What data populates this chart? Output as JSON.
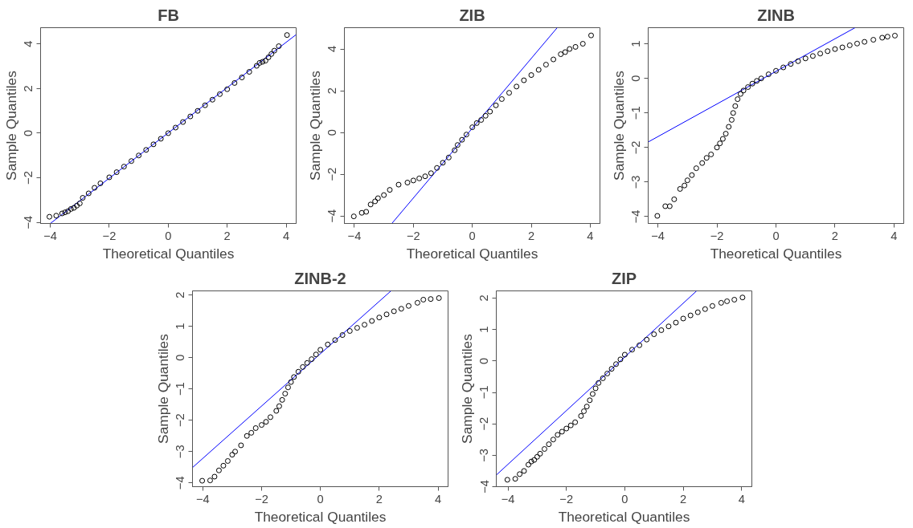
{
  "chart_data": [
    {
      "type": "scatter",
      "title": "FB",
      "xlabel": "Theoretical Quantiles",
      "ylabel": "Sample Quantiles",
      "xlim": [
        -4.33,
        4.34
      ],
      "ylim": [
        -4.05,
        4.73
      ],
      "xticks": [
        -4,
        -2,
        0,
        2,
        4
      ],
      "yticks": [
        -4,
        -2,
        0,
        2,
        4
      ],
      "series": [
        {
          "marker": "circle",
          "color": "#000000",
          "x": [
            -4.03,
            -3.8,
            -3.6,
            -3.5,
            -3.4,
            -3.3,
            -3.2,
            -3.1,
            -3.0,
            -2.9,
            -2.7,
            -2.5,
            -2.3,
            -2.0,
            -1.75,
            -1.5,
            -1.25,
            -1.0,
            -0.75,
            -0.5,
            -0.25,
            0,
            0.25,
            0.5,
            0.75,
            1.0,
            1.25,
            1.5,
            1.75,
            2.0,
            2.25,
            2.5,
            2.75,
            3.0,
            3.1,
            3.2,
            3.3,
            3.4,
            3.5,
            3.6,
            3.75,
            4.03
          ],
          "values": [
            -3.75,
            -3.7,
            -3.6,
            -3.55,
            -3.5,
            -3.4,
            -3.35,
            -3.25,
            -3.15,
            -2.9,
            -2.7,
            -2.45,
            -2.25,
            -1.98,
            -1.75,
            -1.5,
            -1.25,
            -1.0,
            -0.75,
            -0.5,
            -0.25,
            0,
            0.25,
            0.5,
            0.75,
            1.0,
            1.25,
            1.5,
            1.75,
            1.97,
            2.25,
            2.5,
            2.75,
            3.02,
            3.15,
            3.2,
            3.25,
            3.4,
            3.55,
            3.7,
            3.9,
            4.4
          ]
        },
        {
          "type": "line",
          "color": "#0000ff",
          "x": [
            -4.0,
            4.34
          ],
          "values": [
            -4.05,
            4.42
          ]
        }
      ]
    },
    {
      "type": "scatter",
      "title": "ZIB",
      "xlabel": "Theoretical Quantiles",
      "ylabel": "Sample Quantiles",
      "xlim": [
        -4.34,
        4.33
      ],
      "ylim": [
        -4.36,
        5.02
      ],
      "xticks": [
        -4,
        -2,
        0,
        2,
        4
      ],
      "yticks": [
        -4,
        -2,
        0,
        2,
        4
      ],
      "series": [
        {
          "marker": "circle",
          "color": "#000000",
          "x": [
            -4.02,
            -3.75,
            -3.6,
            -3.45,
            -3.3,
            -3.2,
            -3.0,
            -2.8,
            -2.5,
            -2.2,
            -2.0,
            -1.8,
            -1.6,
            -1.4,
            -1.2,
            -1.0,
            -0.8,
            -0.6,
            -0.5,
            -0.35,
            -0.2,
            0,
            0.15,
            0.3,
            0.45,
            0.6,
            0.8,
            1.0,
            1.25,
            1.5,
            1.75,
            2.0,
            2.25,
            2.5,
            2.75,
            3.0,
            3.15,
            3.3,
            3.5,
            3.75,
            4.03
          ],
          "values": [
            -4.02,
            -3.85,
            -3.8,
            -3.45,
            -3.3,
            -3.15,
            -3.0,
            -2.75,
            -2.5,
            -2.4,
            -2.3,
            -2.2,
            -2.1,
            -1.95,
            -1.7,
            -1.45,
            -1.2,
            -0.85,
            -0.6,
            -0.35,
            -0.1,
            0.25,
            0.45,
            0.6,
            0.8,
            1.0,
            1.3,
            1.6,
            1.9,
            2.2,
            2.5,
            2.75,
            3.0,
            3.25,
            3.5,
            3.75,
            3.85,
            4.0,
            4.1,
            4.25,
            4.65
          ]
        },
        {
          "type": "line",
          "color": "#0000ff",
          "x": [
            -2.73,
            2.88
          ],
          "values": [
            -4.36,
            5.02
          ]
        }
      ]
    },
    {
      "type": "scatter",
      "title": "ZINB",
      "xlabel": "Theoretical Quantiles",
      "ylabel": "Sample Quantiles",
      "xlim": [
        -4.33,
        4.33
      ],
      "ylim": [
        -4.2,
        1.47
      ],
      "xticks": [
        -4,
        -2,
        0,
        2,
        4
      ],
      "yticks": [
        -4,
        -3,
        -2,
        -1,
        0,
        1
      ],
      "series": [
        {
          "marker": "circle",
          "color": "#000000",
          "x": [
            -4.02,
            -3.75,
            -3.6,
            -3.45,
            -3.25,
            -3.1,
            -3.0,
            -2.85,
            -2.7,
            -2.5,
            -2.35,
            -2.2,
            -2.0,
            -1.9,
            -1.8,
            -1.7,
            -1.6,
            -1.5,
            -1.45,
            -1.38,
            -1.3,
            -1.2,
            -1.1,
            -0.95,
            -0.8,
            -0.65,
            -0.5,
            -0.25,
            0,
            0.25,
            0.5,
            0.75,
            1.0,
            1.25,
            1.5,
            1.75,
            2.0,
            2.25,
            2.5,
            2.75,
            3.0,
            3.3,
            3.6,
            3.78,
            4.03
          ],
          "values": [
            -3.98,
            -3.7,
            -3.7,
            -3.5,
            -3.2,
            -3.1,
            -2.95,
            -2.8,
            -2.6,
            -2.45,
            -2.3,
            -2.2,
            -2.0,
            -1.88,
            -1.75,
            -1.6,
            -1.4,
            -1.2,
            -1.0,
            -0.8,
            -0.6,
            -0.45,
            -0.35,
            -0.25,
            -0.15,
            -0.07,
            0.0,
            0.12,
            0.22,
            0.32,
            0.42,
            0.5,
            0.58,
            0.65,
            0.72,
            0.79,
            0.85,
            0.9,
            0.96,
            1.01,
            1.06,
            1.12,
            1.18,
            1.21,
            1.24
          ]
        },
        {
          "type": "line",
          "color": "#0000ff",
          "x": [
            -4.33,
            2.68
          ],
          "values": [
            -1.84,
            1.47
          ]
        }
      ]
    },
    {
      "type": "scatter",
      "title": "ZINB-2",
      "xlabel": "Theoretical Quantiles",
      "ylabel": "Sample Quantiles",
      "xlim": [
        -4.35,
        4.34
      ],
      "ylim": [
        -4.12,
        2.13
      ],
      "xticks": [
        -4,
        -2,
        0,
        2,
        4
      ],
      "yticks": [
        -4,
        -3,
        -2,
        -1,
        0,
        1,
        2
      ],
      "series": [
        {
          "marker": "circle",
          "color": "#000000",
          "x": [
            -4.02,
            -3.75,
            -3.6,
            -3.45,
            -3.3,
            -3.15,
            -3.0,
            -2.9,
            -2.7,
            -2.5,
            -2.35,
            -2.2,
            -2.0,
            -1.85,
            -1.7,
            -1.5,
            -1.4,
            -1.3,
            -1.2,
            -1.1,
            -1.0,
            -0.9,
            -0.75,
            -0.6,
            -0.45,
            -0.3,
            -0.15,
            0,
            0.25,
            0.5,
            0.75,
            1.0,
            1.25,
            1.5,
            1.75,
            2.0,
            2.25,
            2.5,
            2.75,
            3.0,
            3.3,
            3.5,
            3.75,
            4.03
          ],
          "values": [
            -3.93,
            -3.92,
            -3.8,
            -3.6,
            -3.45,
            -3.3,
            -3.1,
            -3.0,
            -2.8,
            -2.5,
            -2.4,
            -2.25,
            -2.15,
            -2.05,
            -1.9,
            -1.7,
            -1.55,
            -1.35,
            -1.15,
            -0.95,
            -0.78,
            -0.62,
            -0.45,
            -0.3,
            -0.17,
            -0.05,
            0.1,
            0.25,
            0.42,
            0.56,
            0.72,
            0.85,
            0.95,
            1.05,
            1.17,
            1.28,
            1.38,
            1.48,
            1.56,
            1.65,
            1.75,
            1.85,
            1.87,
            1.9
          ]
        },
        {
          "type": "line",
          "color": "#0000ff",
          "x": [
            -4.35,
            2.4
          ],
          "values": [
            -3.51,
            2.13
          ]
        }
      ]
    },
    {
      "type": "scatter",
      "title": "ZIP",
      "xlabel": "Theoretical Quantiles",
      "ylabel": "Sample Quantiles",
      "xlim": [
        -4.4,
        4.35
      ],
      "ylim": [
        -4.0,
        2.23
      ],
      "xticks": [
        -4,
        -2,
        0,
        2,
        4
      ],
      "yticks": [
        -4,
        -3,
        -2,
        -1,
        0,
        1,
        2
      ],
      "series": [
        {
          "marker": "circle",
          "color": "#000000",
          "x": [
            -4.02,
            -3.75,
            -3.6,
            -3.45,
            -3.3,
            -3.2,
            -3.1,
            -3.0,
            -2.9,
            -2.75,
            -2.6,
            -2.45,
            -2.3,
            -2.15,
            -2.0,
            -1.85,
            -1.7,
            -1.5,
            -1.4,
            -1.3,
            -1.2,
            -1.1,
            -1.0,
            -0.9,
            -0.75,
            -0.6,
            -0.45,
            -0.3,
            -0.15,
            0,
            0.25,
            0.5,
            0.75,
            1.0,
            1.25,
            1.5,
            1.75,
            2.0,
            2.25,
            2.5,
            2.75,
            3.0,
            3.3,
            3.5,
            3.75,
            4.03
          ],
          "values": [
            -3.78,
            -3.75,
            -3.6,
            -3.5,
            -3.3,
            -3.2,
            -3.15,
            -3.05,
            -2.95,
            -2.8,
            -2.65,
            -2.5,
            -2.35,
            -2.25,
            -2.15,
            -2.05,
            -1.95,
            -1.75,
            -1.6,
            -1.45,
            -1.25,
            -1.05,
            -0.87,
            -0.7,
            -0.55,
            -0.4,
            -0.25,
            -0.1,
            0.05,
            0.2,
            0.36,
            0.5,
            0.68,
            0.85,
            0.98,
            1.1,
            1.22,
            1.35,
            1.45,
            1.55,
            1.65,
            1.75,
            1.85,
            1.9,
            1.95,
            2.02
          ]
        },
        {
          "type": "line",
          "color": "#0000ff",
          "x": [
            -4.4,
            2.46
          ],
          "values": [
            -3.63,
            2.23
          ]
        }
      ]
    }
  ]
}
